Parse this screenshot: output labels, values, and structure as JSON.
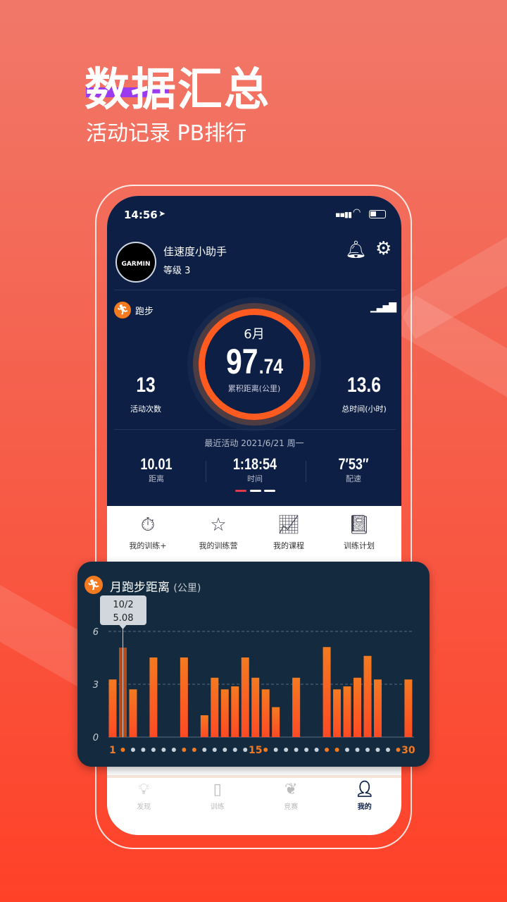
{
  "promo": {
    "title": "数据汇总",
    "subtitle": "活动记录  PB排行"
  },
  "status": {
    "time": "14:56"
  },
  "profile": {
    "name": "佳速度小助手",
    "level": "等级 3",
    "avatar_text": "GARMIN"
  },
  "sport": {
    "label": "跑步"
  },
  "ring": {
    "month": "6月",
    "value_int": "97",
    "value_dec": ".74",
    "label": "累积距离(公里)"
  },
  "stats": {
    "count": "13",
    "count_label": "活动次数",
    "hours": "13.6",
    "hours_label": "总时间(小时)"
  },
  "recent": {
    "title": "最近活动 2021/6/21 周一",
    "distance": "10.01",
    "distance_label": "距离",
    "time": "1:18:54",
    "time_label": "时间",
    "pace": "7′53″",
    "pace_label": "配速"
  },
  "shortcuts": [
    {
      "label": "我的训练+",
      "icon": "stopwatch-icon"
    },
    {
      "label": "我的训练营",
      "icon": "bookmark-star-icon"
    },
    {
      "label": "我的课程",
      "icon": "line-chart-icon"
    },
    {
      "label": "训练计划",
      "icon": "notebook-icon"
    }
  ],
  "nav": [
    {
      "label": "发现",
      "icon": "lightbulb-icon"
    },
    {
      "label": "训练",
      "icon": "book-icon"
    },
    {
      "label": "竞赛",
      "icon": "laurel-icon"
    },
    {
      "label": "我的",
      "icon": "user-icon",
      "active": true
    }
  ],
  "colors": {
    "accent": "#f47a20",
    "navy": "#0d1f45",
    "chart_bg": "#142a3f"
  },
  "chart_data": {
    "type": "bar",
    "title": "月跑步距离",
    "unit": "(公里)",
    "x": [
      1,
      2,
      3,
      4,
      5,
      6,
      7,
      8,
      9,
      10,
      11,
      12,
      13,
      14,
      15,
      16,
      17,
      18,
      19,
      20,
      21,
      22,
      23,
      24,
      25,
      26,
      27,
      28,
      29,
      30
    ],
    "values": [
      3.27,
      5.08,
      2.71,
      0,
      4.52,
      0,
      0,
      4.52,
      0,
      1.24,
      3.37,
      2.71,
      2.88,
      4.52,
      3.37,
      2.71,
      1.7,
      0,
      3.37,
      0,
      0,
      5.11,
      2.71,
      2.88,
      3.37,
      4.61,
      3.27,
      0,
      0,
      3.27
    ],
    "ylim": [
      0,
      6
    ],
    "yticks": [
      "0",
      "3",
      "6"
    ],
    "xtick_labels": {
      "1": "1",
      "15": "15",
      "30": "30"
    },
    "highlight_days": [
      2,
      8,
      9,
      16,
      22,
      23,
      29
    ],
    "tooltip": {
      "date": "10/2",
      "value": "5.08"
    },
    "grid": true
  }
}
